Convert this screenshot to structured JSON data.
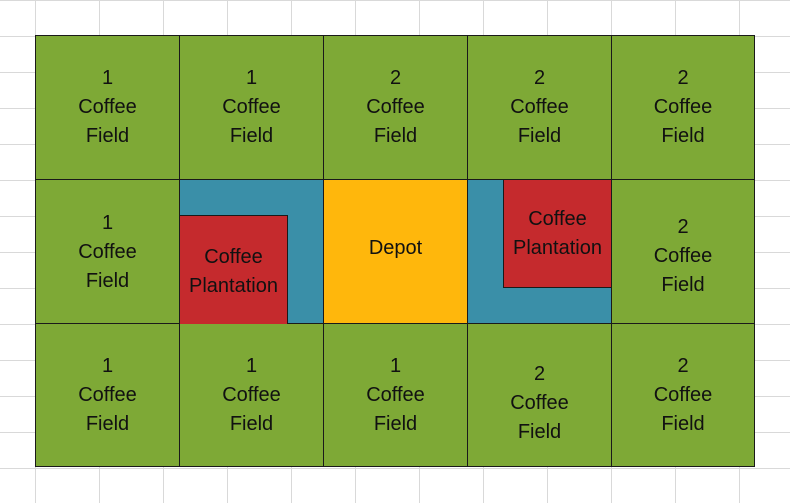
{
  "colors": {
    "field": "#7ea936",
    "depot": "#ffb70c",
    "plantation": "#c52a2d",
    "path": "#3a8fa8",
    "border": "#1a1a1a"
  },
  "rows": [
    [
      {
        "number": "1",
        "line1": "Coffee",
        "line2": "Field"
      },
      {
        "number": "1",
        "line1": "Coffee",
        "line2": "Field"
      },
      {
        "number": "2",
        "line1": "Coffee",
        "line2": "Field"
      },
      {
        "number": "2",
        "line1": "Coffee",
        "line2": "Field"
      },
      {
        "number": "2",
        "line1": "Coffee",
        "line2": "Field"
      }
    ],
    [
      {
        "number": "1",
        "line1": "Coffee",
        "line2": "Field"
      },
      {
        "line1": "Coffee",
        "line2": "Plantation"
      },
      {
        "label": "Depot"
      },
      {
        "line1": "Coffee",
        "line2": "Plantation"
      },
      {
        "number": "2",
        "line1": "Coffee",
        "line2": "Field"
      }
    ],
    [
      {
        "number": "1",
        "line1": "Coffee",
        "line2": "Field"
      },
      {
        "number": "1",
        "line1": "Coffee",
        "line2": "Field"
      },
      {
        "number": "1",
        "line1": "Coffee",
        "line2": "Field"
      },
      {
        "number": "2",
        "line1": "Coffee",
        "line2": "Field"
      },
      {
        "number": "2",
        "line1": "Coffee",
        "line2": "Field"
      }
    ]
  ]
}
